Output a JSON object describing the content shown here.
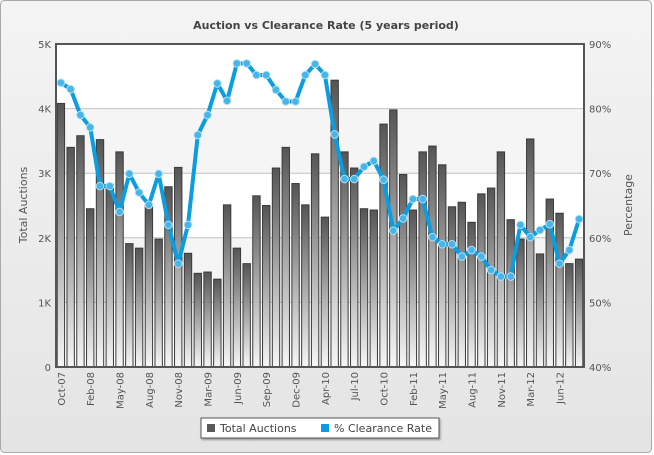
{
  "chart_data": {
    "type": "bar",
    "title": "Auction vs Clearance Rate (5 years period)",
    "ylabel": "Total Auctions",
    "y2label": "Percentage",
    "ylim": [
      0,
      5000
    ],
    "y2lim": [
      40,
      90
    ],
    "y_ticks": [
      "0",
      "1K",
      "2K",
      "3K",
      "4K",
      "5K"
    ],
    "y2_ticks": [
      "40%",
      "50%",
      "60%",
      "70%",
      "80%",
      "90%"
    ],
    "tick_labels": [
      "Oct-07",
      "Feb-08",
      "May-08",
      "Aug-08",
      "Nov-08",
      "Mar-09",
      "Jun-09",
      "Sep-09",
      "Dec-09",
      "Apr-10",
      "Jul-10",
      "Oct-10",
      "Feb-11",
      "May-11",
      "Aug-11",
      "Nov-11",
      "Mar-12",
      "Jun-12"
    ],
    "tick_every": 3,
    "grid": true,
    "legend_position": "bottom",
    "series": [
      {
        "name": "Total Auctions",
        "type": "bar",
        "axis": "left",
        "color": "#5a5a5a",
        "values": [
          4080,
          3400,
          3580,
          2450,
          3520,
          2830,
          3330,
          1910,
          1840,
          2510,
          1980,
          2790,
          3090,
          1760,
          1450,
          1470,
          1360,
          2510,
          1840,
          1600,
          2650,
          2500,
          3080,
          3400,
          2840,
          2510,
          3300,
          2320,
          4440,
          3330,
          3080,
          2450,
          2430,
          3760,
          3980,
          2980,
          2430,
          3330,
          3420,
          3130,
          2480,
          2550,
          2240,
          2680,
          2770,
          3330,
          2280,
          1980,
          3530,
          1750,
          2600,
          2380,
          1600,
          1670
        ]
      },
      {
        "name": "% Clearance Rate",
        "type": "line",
        "axis": "right",
        "color": "#0a9de0",
        "values": [
          84.0,
          83.0,
          79.0,
          77.1,
          68.0,
          68.0,
          64.0,
          69.9,
          67.0,
          65.1,
          69.9,
          62.0,
          56.0,
          62.0,
          75.9,
          79.0,
          83.9,
          81.2,
          87.0,
          87.0,
          85.2,
          85.2,
          82.9,
          81.1,
          81.1,
          85.2,
          86.9,
          85.2,
          76.0,
          69.1,
          69.1,
          71.0,
          71.9,
          69.0,
          61.1,
          63.0,
          66.0,
          66.0,
          60.1,
          59.0,
          59.0,
          57.1,
          58.1,
          57.1,
          55.0,
          54.0,
          54.0,
          62.0,
          60.1,
          61.2,
          62.1,
          56.0,
          58.1,
          62.9
        ]
      }
    ]
  }
}
